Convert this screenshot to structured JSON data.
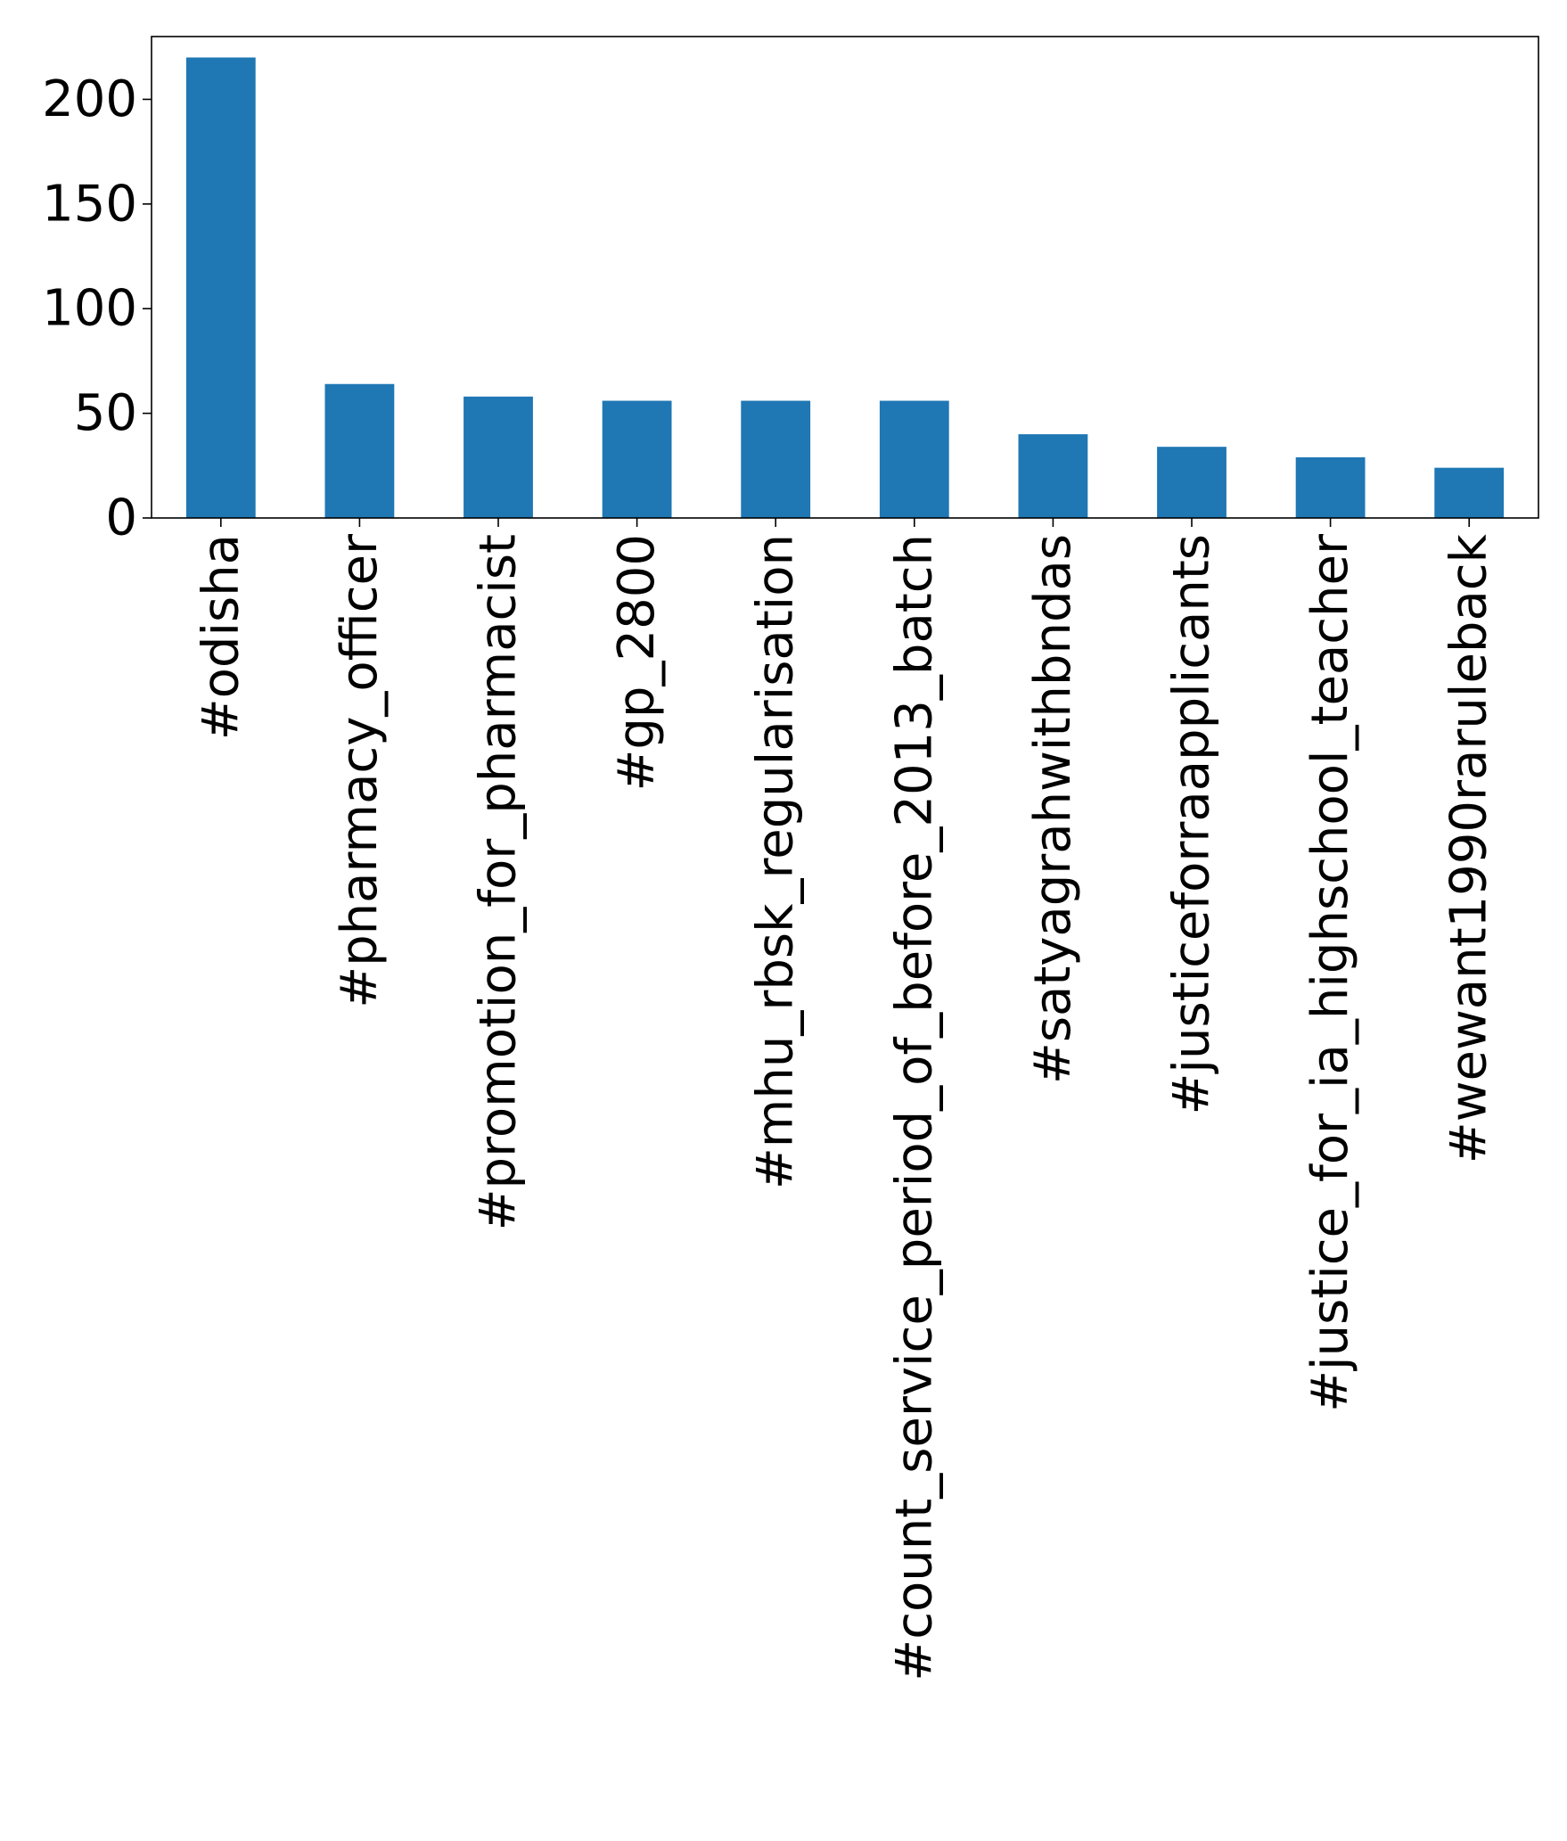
{
  "chart_data": {
    "type": "bar",
    "categories": [
      "#odisha",
      "#pharmacy_officer",
      "#promotion_for_pharmacist",
      "#gp_2800",
      "#mhu_rbsk_regularisation",
      "#count_service_period_of_before_2013_batch",
      "#satyagrahwithbndas",
      "#justiceforraapplicants",
      "#justice_for_ia_highschool_teacher",
      "#wewant1990raruleback"
    ],
    "values": [
      220,
      64,
      58,
      56,
      56,
      56,
      40,
      34,
      29,
      24
    ],
    "yticks": [
      0,
      50,
      100,
      150,
      200
    ],
    "ylim": [
      0,
      230
    ],
    "title": "",
    "xlabel": "",
    "ylabel": "",
    "grid": false,
    "legend": "none",
    "colors": {
      "bar": "#1f77b4",
      "axis": "#000000"
    }
  }
}
